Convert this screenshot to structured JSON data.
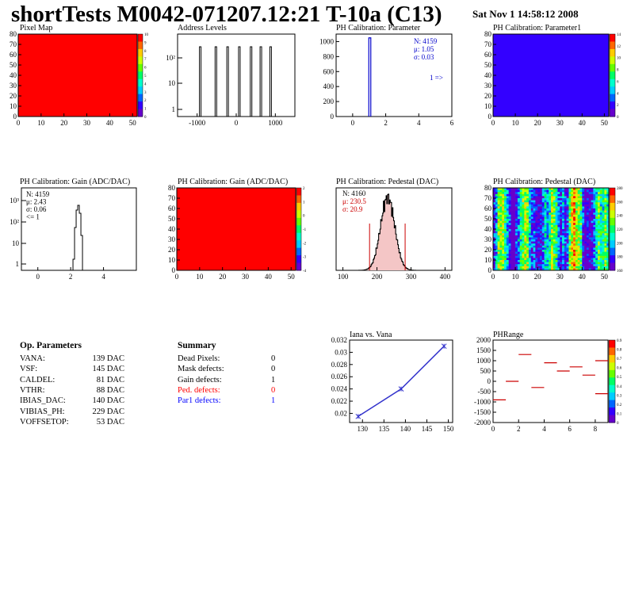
{
  "header": {
    "title": "shortTests M0042-071207.12:21 T-10a (C13)",
    "date": "Sat Nov  1 14:58:12 2008"
  },
  "panels": {
    "pixel_map": {
      "title": "Pixel Map",
      "xticks": [
        "0",
        "10",
        "20",
        "30",
        "40",
        "50"
      ],
      "yticks": [
        "0",
        "10",
        "20",
        "30",
        "40",
        "50",
        "60",
        "70",
        "80"
      ],
      "zticks": [
        "0",
        "1",
        "2",
        "3",
        "4",
        "5",
        "6",
        "7",
        "8",
        "9",
        "10"
      ]
    },
    "address_levels": {
      "title": "Address Levels",
      "xticks": [
        "-1000",
        "0",
        "1000"
      ],
      "yticks": [
        "1",
        "10",
        "10²"
      ]
    },
    "ph_param": {
      "title": "PH Calibration: Parameter",
      "xticks": [
        "0",
        "2",
        "4",
        "6"
      ],
      "yticks": [
        "0",
        "200",
        "400",
        "600",
        "800",
        "1000"
      ],
      "stats": [
        "N: 4159",
        "μ: 1.05",
        "σ: 0.03"
      ],
      "arrow_label": "1 =>"
    },
    "ph_param1": {
      "title": "PH Calibration: Parameter1",
      "xticks": [
        "0",
        "10",
        "20",
        "30",
        "40",
        "50"
      ],
      "yticks": [
        "0",
        "10",
        "20",
        "30",
        "40",
        "50",
        "60",
        "70",
        "80"
      ],
      "zticks": [
        "0",
        "2",
        "4",
        "6",
        "8",
        "10",
        "12",
        "14"
      ]
    },
    "gain_hist": {
      "title": "PH Calibration: Gain (ADC/DAC)",
      "xticks": [
        "0",
        "2",
        "4"
      ],
      "yticks": [
        "1",
        "10",
        "10²",
        "10³"
      ],
      "stats": [
        "N: 4159",
        "μ: 2.43",
        "σ: 0.06",
        "<= 1"
      ]
    },
    "gain_map": {
      "title": "PH Calibration: Gain (ADC/DAC)",
      "xticks": [
        "0",
        "10",
        "20",
        "30",
        "40",
        "50"
      ],
      "yticks": [
        "0",
        "10",
        "20",
        "30",
        "40",
        "50",
        "60",
        "70",
        "80"
      ],
      "zticks": [
        "-4",
        "-3",
        "-2",
        "-1",
        "0",
        "1",
        "2"
      ]
    },
    "pedestal_hist": {
      "title": "PH Calibration: Pedestal (DAC)",
      "xticks": [
        "100",
        "200",
        "300",
        "400"
      ],
      "yticks": [],
      "stats": [
        "N: 4160",
        "μ: 230.5",
        "σ: 20.9"
      ]
    },
    "pedestal_map": {
      "title": "PH Calibration: Pedestal (DAC)",
      "xticks": [
        "0",
        "10",
        "20",
        "30",
        "40",
        "50"
      ],
      "yticks": [
        "0",
        "10",
        "20",
        "30",
        "40",
        "50",
        "60",
        "70",
        "80"
      ],
      "zticks": [
        "160",
        "180",
        "200",
        "220",
        "240",
        "260",
        "280"
      ]
    },
    "iana": {
      "title": "Iana vs. Vana",
      "xticks": [
        "130",
        "135",
        "140",
        "145",
        "150"
      ],
      "yticks": [
        "0.02",
        "0.022",
        "0.024",
        "0.026",
        "0.028",
        "0.03",
        "0.032"
      ]
    },
    "phrange": {
      "title": "PHRange",
      "xticks": [
        "0",
        "2",
        "4",
        "6",
        "8"
      ],
      "yticks": [
        "2000",
        "1500",
        "1000",
        "500",
        "0",
        "-500",
        "-1000",
        "-1500",
        "-2000"
      ],
      "zticks": [
        "0",
        "0.1",
        "0.2",
        "0.3",
        "0.4",
        "0.5",
        "0.6",
        "0.7",
        "0.8",
        "0.9"
      ]
    }
  },
  "op_parameters": {
    "heading": "Op. Parameters",
    "rows": [
      {
        "name": "VANA:",
        "value": "139 DAC"
      },
      {
        "name": "VSF:",
        "value": "145 DAC"
      },
      {
        "name": "CALDEL:",
        "value": "81 DAC"
      },
      {
        "name": "VTHR:",
        "value": "88 DAC"
      },
      {
        "name": "IBIAS_DAC:",
        "value": "140 DAC"
      },
      {
        "name": "VIBIAS_PH:",
        "value": "229 DAC"
      },
      {
        "name": "VOFFSETOP:",
        "value": "53 DAC"
      }
    ]
  },
  "summary": {
    "heading": "Summary",
    "rows": [
      {
        "name": "Dead Pixels:",
        "value": "0",
        "color": "#000000"
      },
      {
        "name": "Mask defects:",
        "value": "0",
        "color": "#000000"
      },
      {
        "name": "Gain defects:",
        "value": "1",
        "color": "#000000"
      },
      {
        "name": "Ped. defects:",
        "value": "0",
        "color": "#ff0000"
      },
      {
        "name": "Par1 defects:",
        "value": "1",
        "color": "#0000ff"
      }
    ]
  },
  "colors": {
    "map_red": "#ff0000",
    "map_blue": "#3300ff",
    "line_blue": "#3333cc",
    "hist_red": "#cc0000"
  },
  "chart_data": [
    {
      "type": "heatmap",
      "title": "Pixel Map",
      "xlim": [
        0,
        52
      ],
      "ylim": [
        0,
        80
      ],
      "zlim": [
        0,
        10
      ],
      "uniform_value": 10
    },
    {
      "type": "bar",
      "title": "Address Levels",
      "xlim": [
        -1500,
        1500
      ],
      "log_y": true,
      "peaks": [
        {
          "x": -900,
          "y": 400
        },
        {
          "x": -500,
          "y": 400
        },
        {
          "x": -200,
          "y": 400
        },
        {
          "x": 100,
          "y": 400
        },
        {
          "x": 400,
          "y": 400
        },
        {
          "x": 650,
          "y": 400
        },
        {
          "x": 900,
          "y": 400
        }
      ]
    },
    {
      "type": "bar",
      "title": "PH Calibration: Parameter",
      "xlim": [
        -1,
        6
      ],
      "ylim": [
        0,
        1100
      ],
      "peaks": [
        {
          "x": 1.05,
          "y": 1050
        }
      ]
    },
    {
      "type": "heatmap",
      "title": "PH Calibration: Parameter1",
      "xlim": [
        0,
        52
      ],
      "ylim": [
        0,
        80
      ],
      "zlim": [
        0,
        15
      ],
      "uniform_value": 1
    },
    {
      "type": "bar",
      "title": "PH Calibration: Gain (ADC/DAC)",
      "xlim": [
        -1,
        6
      ],
      "log_y": true,
      "peaks": [
        {
          "x": 2.43,
          "y": 600
        }
      ]
    },
    {
      "type": "heatmap",
      "title": "PH Calibration: Gain (ADC/DAC)",
      "xlim": [
        0,
        52
      ],
      "ylim": [
        0,
        80
      ],
      "uniform_value": 2.43
    },
    {
      "type": "bar",
      "title": "PH Calibration: Pedestal (DAC)",
      "xlim": [
        80,
        420
      ],
      "mean": 230.5,
      "sigma": 20.9
    },
    {
      "type": "heatmap",
      "title": "PH Calibration: Pedestal (DAC)",
      "xlim": [
        0,
        52
      ],
      "ylim": [
        0,
        80
      ],
      "zlim": [
        160,
        290
      ]
    },
    {
      "type": "line",
      "title": "Iana vs. Vana",
      "xlim": [
        127,
        151
      ],
      "ylim": [
        0.0185,
        0.032
      ],
      "x": [
        129,
        139,
        149
      ],
      "y": [
        0.0195,
        0.024,
        0.031
      ]
    },
    {
      "type": "scatter",
      "title": "PHRange",
      "xlim": [
        0,
        9
      ],
      "ylim": [
        -2000,
        2000
      ],
      "segments": [
        {
          "x0": 0,
          "x1": 1,
          "y": -900
        },
        {
          "x0": 1,
          "x1": 2,
          "y": 0
        },
        {
          "x0": 2,
          "x1": 3,
          "y": 1300
        },
        {
          "x0": 3,
          "x1": 4,
          "y": -300
        },
        {
          "x0": 4,
          "x1": 5,
          "y": 900
        },
        {
          "x0": 5,
          "x1": 6,
          "y": 500
        },
        {
          "x0": 6,
          "x1": 7,
          "y": 700
        },
        {
          "x0": 7,
          "x1": 8,
          "y": 300
        },
        {
          "x0": 8,
          "x1": 9,
          "y": 1000
        },
        {
          "x0": 8,
          "x1": 9,
          "y": -600
        }
      ]
    }
  ]
}
